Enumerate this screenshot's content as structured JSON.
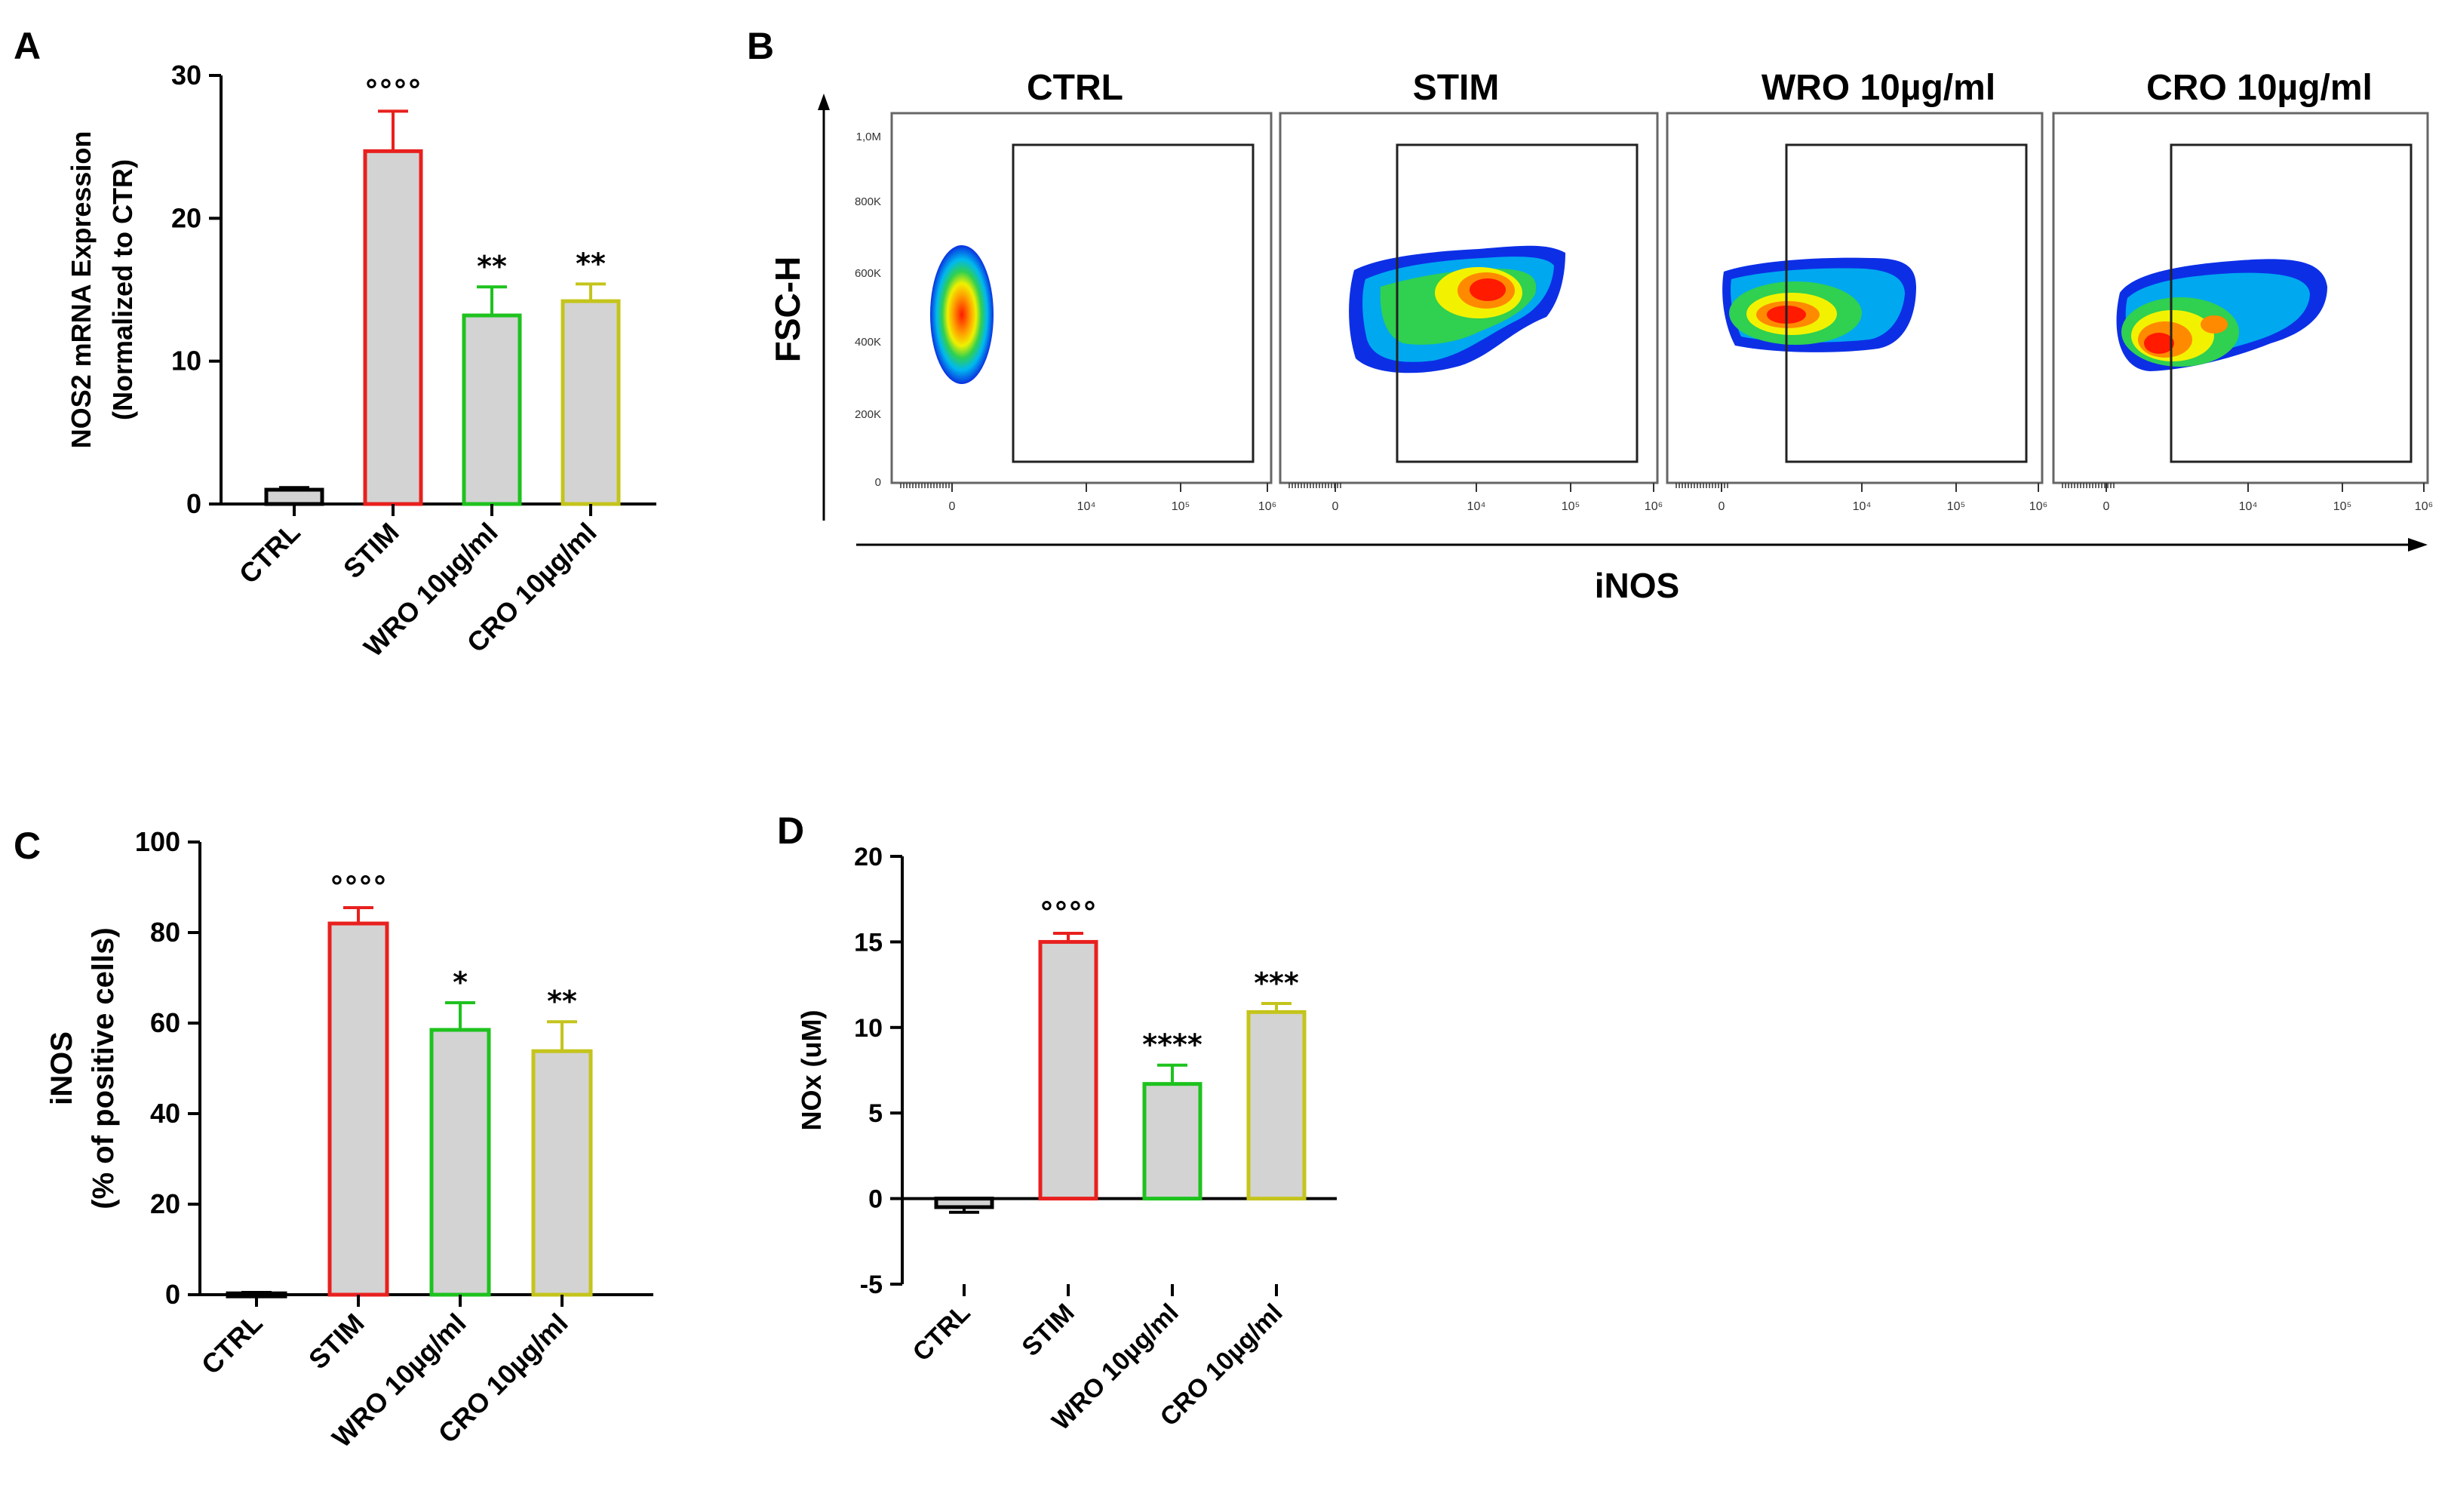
{
  "panel_labels": {
    "a": "A",
    "b": "B",
    "c": "C",
    "d": "D"
  },
  "colors": {
    "ctrl": "#000000",
    "stim": "#e8201e",
    "wro": "#1ec21e",
    "cro": "#c4c41c",
    "bar_fill": "#d3d3d3"
  },
  "chart_data": [
    {
      "id": "A",
      "type": "bar",
      "categories": [
        "CTRL",
        "STIM",
        "WRO 10µg/ml",
        "CRO 10µg/ml"
      ],
      "values": [
        1.0,
        24.7,
        13.2,
        14.2
      ],
      "errors": [
        0.15,
        2.8,
        2.0,
        1.2
      ],
      "annotations": [
        "",
        "°°°°",
        "**",
        "**"
      ],
      "ylabel": [
        "NOS2 mRNA Expression",
        "(Normalized to CTR)"
      ],
      "ylim": [
        0,
        30
      ],
      "yticks": [
        0,
        10,
        20,
        30
      ]
    },
    {
      "id": "C",
      "type": "bar",
      "categories": [
        "CTRL",
        "STIM",
        "WRO 10µg/ml",
        "CRO 10µg/ml"
      ],
      "values": [
        0.3,
        82.0,
        58.5,
        53.8
      ],
      "errors": [
        0.2,
        3.5,
        6.0,
        6.5
      ],
      "annotations": [
        "",
        "°°°°",
        "*",
        "**"
      ],
      "ylabel": [
        "iNOS",
        "(% of positive cells)"
      ],
      "ylim": [
        0,
        100
      ],
      "yticks": [
        0,
        20,
        40,
        60,
        80,
        100
      ]
    },
    {
      "id": "D",
      "type": "bar",
      "categories": [
        "CTRL",
        "STIM",
        "WRO 10µg/ml",
        "CRO 10µg/ml"
      ],
      "values": [
        -0.5,
        15.0,
        6.7,
        10.9
      ],
      "errors": [
        0.3,
        0.5,
        1.1,
        0.5
      ],
      "annotations": [
        "",
        "°°°°",
        "****",
        "***"
      ],
      "ylabel": [
        "NOx (uM)"
      ],
      "ylim": [
        -5,
        20
      ],
      "yticks": [
        -5,
        0,
        5,
        10,
        15,
        20
      ]
    }
  ],
  "flow_panel": {
    "titles": [
      "CTRL",
      "STIM",
      "WRO 10µg/ml",
      "CRO 10µg/ml"
    ],
    "y_axis_label": "FSC-H",
    "x_axis_label": "iNOS",
    "y_ticks": [
      "1,0M",
      "800K",
      "600K",
      "400K",
      "200K",
      "0"
    ],
    "x_ticks": [
      "0",
      "10⁴",
      "10⁵",
      "10⁶"
    ]
  }
}
